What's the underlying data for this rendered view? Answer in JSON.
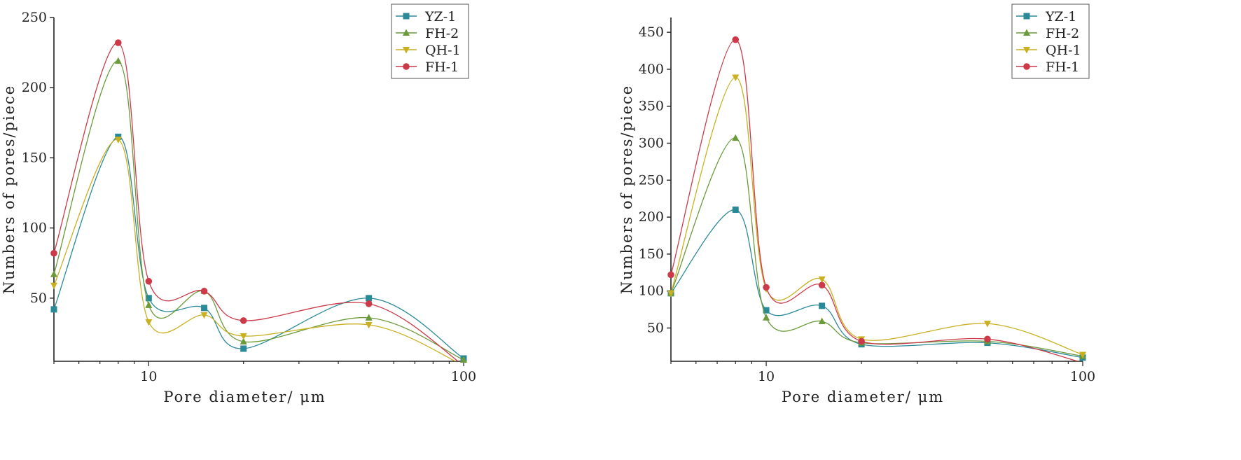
{
  "chart_data": [
    {
      "type": "line",
      "xscale": "log",
      "xlabel": "Pore diameter/ μm",
      "ylabel": "Numbers of pores/piece",
      "xlim": [
        5,
        100
      ],
      "ylim": [
        5,
        250
      ],
      "xticks": [
        10,
        100
      ],
      "yticks": [
        50,
        100,
        150,
        200,
        250
      ],
      "legend_position": "top-right",
      "x": [
        5,
        8,
        10,
        15,
        20,
        50,
        100
      ],
      "series": [
        {
          "name": "YZ-1",
          "color": "#2b8a97",
          "marker": "square",
          "values": [
            42,
            165,
            50,
            43,
            14,
            50,
            7
          ]
        },
        {
          "name": "FH-2",
          "color": "#6b9a3a",
          "marker": "triangle-up",
          "values": [
            67,
            219,
            45,
            55,
            19,
            36,
            6
          ]
        },
        {
          "name": "QH-1",
          "color": "#c9b020",
          "marker": "triangle-down",
          "values": [
            59,
            163,
            33,
            38,
            23,
            31,
            2
          ]
        },
        {
          "name": "FH-1",
          "color": "#cc3a4a",
          "marker": "circle",
          "values": [
            82,
            232,
            62,
            55,
            34,
            46,
            2
          ]
        }
      ]
    },
    {
      "type": "line",
      "xscale": "log",
      "xlabel": "Pore diameter/ μm",
      "ylabel": "Numbers of pores/piece",
      "xlim": [
        5,
        100
      ],
      "ylim": [
        5,
        470
      ],
      "xticks": [
        10,
        100
      ],
      "yticks": [
        50,
        100,
        150,
        200,
        250,
        300,
        350,
        400,
        450
      ],
      "legend_position": "top-right",
      "x": [
        5,
        8,
        10,
        15,
        20,
        50,
        100
      ],
      "series": [
        {
          "name": "YZ-1",
          "color": "#2b8a97",
          "marker": "square",
          "values": [
            97,
            210,
            74,
            80,
            28,
            30,
            10
          ]
        },
        {
          "name": "FH-2",
          "color": "#6b9a3a",
          "marker": "triangle-up",
          "values": [
            97,
            307,
            64,
            59,
            30,
            32,
            12
          ]
        },
        {
          "name": "QH-1",
          "color": "#c9b020",
          "marker": "triangle-down",
          "values": [
            97,
            389,
            103,
            116,
            35,
            56,
            14
          ]
        },
        {
          "name": "FH-1",
          "color": "#cc3a4a",
          "marker": "circle",
          "values": [
            122,
            440,
            105,
            108,
            32,
            35,
            3
          ]
        }
      ]
    }
  ]
}
